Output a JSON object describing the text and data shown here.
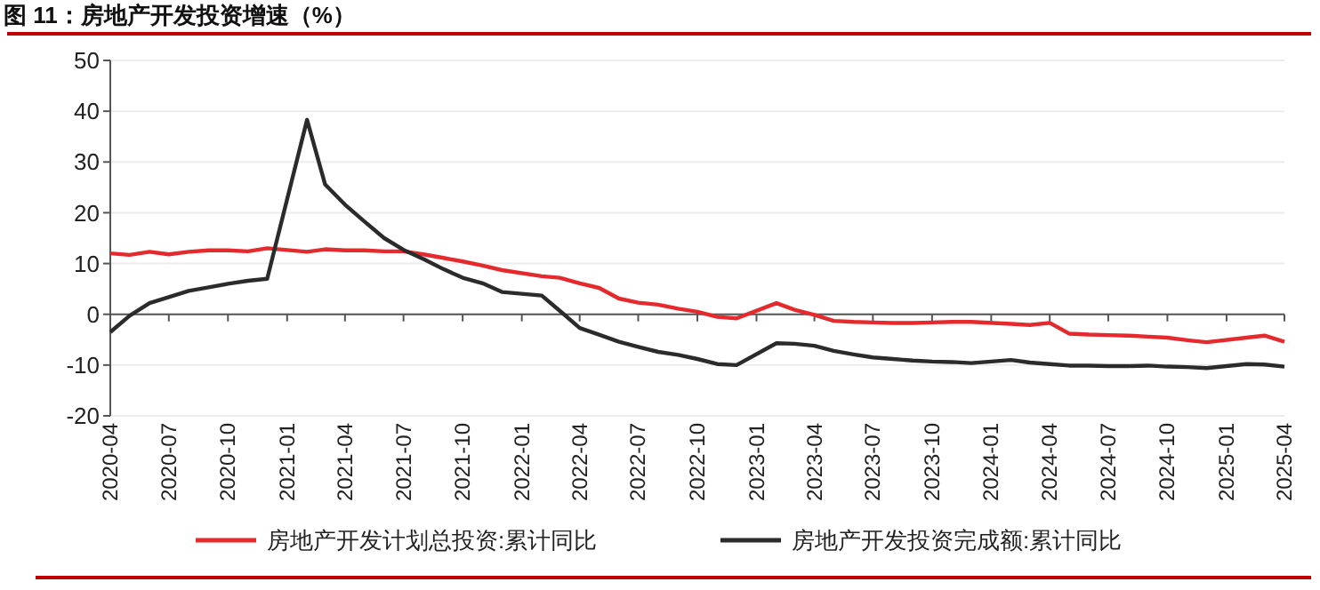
{
  "chart_data": {
    "type": "line",
    "title": "图 11：房地产开发投资增速（%）",
    "x": [
      "2020-04",
      "2020-05",
      "2020-06",
      "2020-07",
      "2020-08",
      "2020-09",
      "2020-10",
      "2020-11",
      "2020-12",
      "2021-02",
      "2021-03",
      "2021-04",
      "2021-05",
      "2021-06",
      "2021-07",
      "2021-08",
      "2021-09",
      "2021-10",
      "2021-11",
      "2021-12",
      "2022-02",
      "2022-03",
      "2022-04",
      "2022-05",
      "2022-06",
      "2022-07",
      "2022-08",
      "2022-09",
      "2022-10",
      "2022-11",
      "2022-12",
      "2023-02",
      "2023-03",
      "2023-04",
      "2023-05",
      "2023-06",
      "2023-07",
      "2023-08",
      "2023-09",
      "2023-10",
      "2023-11",
      "2023-12",
      "2024-02",
      "2024-03",
      "2024-04",
      "2024-05",
      "2024-06",
      "2024-07",
      "2024-08",
      "2024-09",
      "2024-10",
      "2024-11",
      "2024-12",
      "2025-02",
      "2025-03",
      "2025-04"
    ],
    "series": [
      {
        "name": "房地产开发计划总投资:累计同比",
        "color": "#e52a2d",
        "values": [
          12.0,
          11.7,
          12.3,
          11.8,
          12.3,
          12.6,
          12.6,
          12.4,
          13.0,
          12.3,
          12.8,
          12.6,
          12.6,
          12.4,
          12.4,
          11.8,
          11.1,
          10.4,
          9.6,
          8.7,
          7.5,
          7.2,
          6.1,
          5.2,
          3.1,
          2.3,
          1.9,
          1.1,
          0.5,
          -0.5,
          -0.8,
          2.2,
          0.9,
          -0.1,
          -1.3,
          -1.5,
          -1.6,
          -1.7,
          -1.7,
          -1.6,
          -1.5,
          -1.5,
          -1.9,
          -2.1,
          -1.7,
          -3.8,
          -4.0,
          -4.1,
          -4.2,
          -4.4,
          -4.6,
          -5.1,
          -5.5,
          -4.6,
          -4.2,
          -5.4
        ]
      },
      {
        "name": "房地产开发投资完成额:累计同比",
        "color": "#2b2b2b",
        "values": [
          -3.5,
          -0.3,
          2.2,
          3.4,
          4.6,
          5.3,
          6.0,
          6.6,
          7.0,
          38.3,
          25.6,
          21.6,
          18.3,
          15.0,
          12.7,
          10.9,
          8.9,
          7.2,
          6.1,
          4.4,
          3.7,
          0.7,
          -2.7,
          -4.0,
          -5.4,
          -6.4,
          -7.4,
          -8.0,
          -8.8,
          -9.8,
          -10.0,
          -5.7,
          -5.8,
          -6.2,
          -7.2,
          -7.9,
          -8.5,
          -8.8,
          -9.1,
          -9.3,
          -9.4,
          -9.6,
          -9.0,
          -9.5,
          -9.8,
          -10.1,
          -10.1,
          -10.2,
          -10.2,
          -10.1,
          -10.3,
          -10.4,
          -10.6,
          -9.8,
          -9.9,
          -10.3
        ]
      }
    ],
    "xlim": [
      "2020-04",
      "2025-04"
    ],
    "xticks": [
      "2020-04",
      "2020-07",
      "2020-10",
      "2021-01",
      "2021-04",
      "2021-07",
      "2021-10",
      "2022-01",
      "2022-04",
      "2022-07",
      "2022-10",
      "2023-01",
      "2023-04",
      "2023-07",
      "2023-10",
      "2024-01",
      "2024-04",
      "2024-07",
      "2024-10",
      "2025-01",
      "2025-04"
    ],
    "ylim": [
      -20,
      50
    ],
    "yticks": [
      -20,
      -10,
      0,
      10,
      20,
      30,
      40,
      50
    ],
    "grid": "y",
    "legend": "bottom",
    "marker": "none",
    "line_style": "solid"
  }
}
